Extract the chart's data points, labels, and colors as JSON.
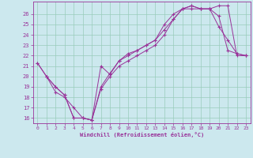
{
  "xlabel": "Windchill (Refroidissement éolien,°C)",
  "bg_color": "#cce8ee",
  "line_color": "#993399",
  "grid_color": "#99ccbb",
  "xlim": [
    -0.5,
    23.5
  ],
  "ylim": [
    15.5,
    27.2
  ],
  "xticks": [
    0,
    1,
    2,
    3,
    4,
    5,
    6,
    7,
    8,
    9,
    10,
    11,
    12,
    13,
    14,
    15,
    16,
    17,
    18,
    19,
    20,
    21,
    22,
    23
  ],
  "yticks": [
    16,
    17,
    18,
    19,
    20,
    21,
    22,
    23,
    24,
    25,
    26
  ],
  "line1_x": [
    0,
    1,
    2,
    3,
    4,
    5,
    6,
    7,
    8,
    9,
    10,
    11,
    12,
    13,
    14,
    15,
    16,
    17,
    18,
    19,
    20,
    21,
    22,
    23
  ],
  "line1_y": [
    21.3,
    20.0,
    19.0,
    18.2,
    16.0,
    16.0,
    15.8,
    19.0,
    20.3,
    21.5,
    22.0,
    22.5,
    23.0,
    23.5,
    25.0,
    26.0,
    26.5,
    26.5,
    26.5,
    26.5,
    25.8,
    22.5,
    22.2,
    22.0
  ],
  "line2_x": [
    1,
    2,
    3,
    4,
    5,
    6,
    7,
    8,
    9,
    10,
    11,
    12,
    13,
    14,
    15,
    16,
    17,
    18,
    19,
    20,
    21,
    22,
    23
  ],
  "line2_y": [
    20.0,
    18.5,
    18.0,
    17.0,
    16.0,
    15.8,
    21.0,
    20.2,
    21.5,
    22.2,
    22.5,
    23.0,
    23.5,
    24.5,
    25.5,
    26.5,
    26.8,
    26.5,
    26.5,
    26.8,
    26.8,
    22.0,
    22.0
  ],
  "line3_x": [
    0,
    1,
    2,
    3,
    4,
    5,
    6,
    7,
    8,
    9,
    10,
    11,
    12,
    13,
    14,
    15,
    16,
    17,
    18,
    19,
    20,
    21,
    22,
    23
  ],
  "line3_y": [
    21.3,
    20.0,
    19.0,
    18.2,
    16.0,
    16.0,
    15.8,
    18.8,
    20.0,
    21.0,
    21.5,
    22.0,
    22.5,
    23.0,
    24.0,
    25.5,
    26.5,
    26.8,
    26.5,
    26.5,
    24.8,
    23.5,
    22.2,
    22.0
  ]
}
